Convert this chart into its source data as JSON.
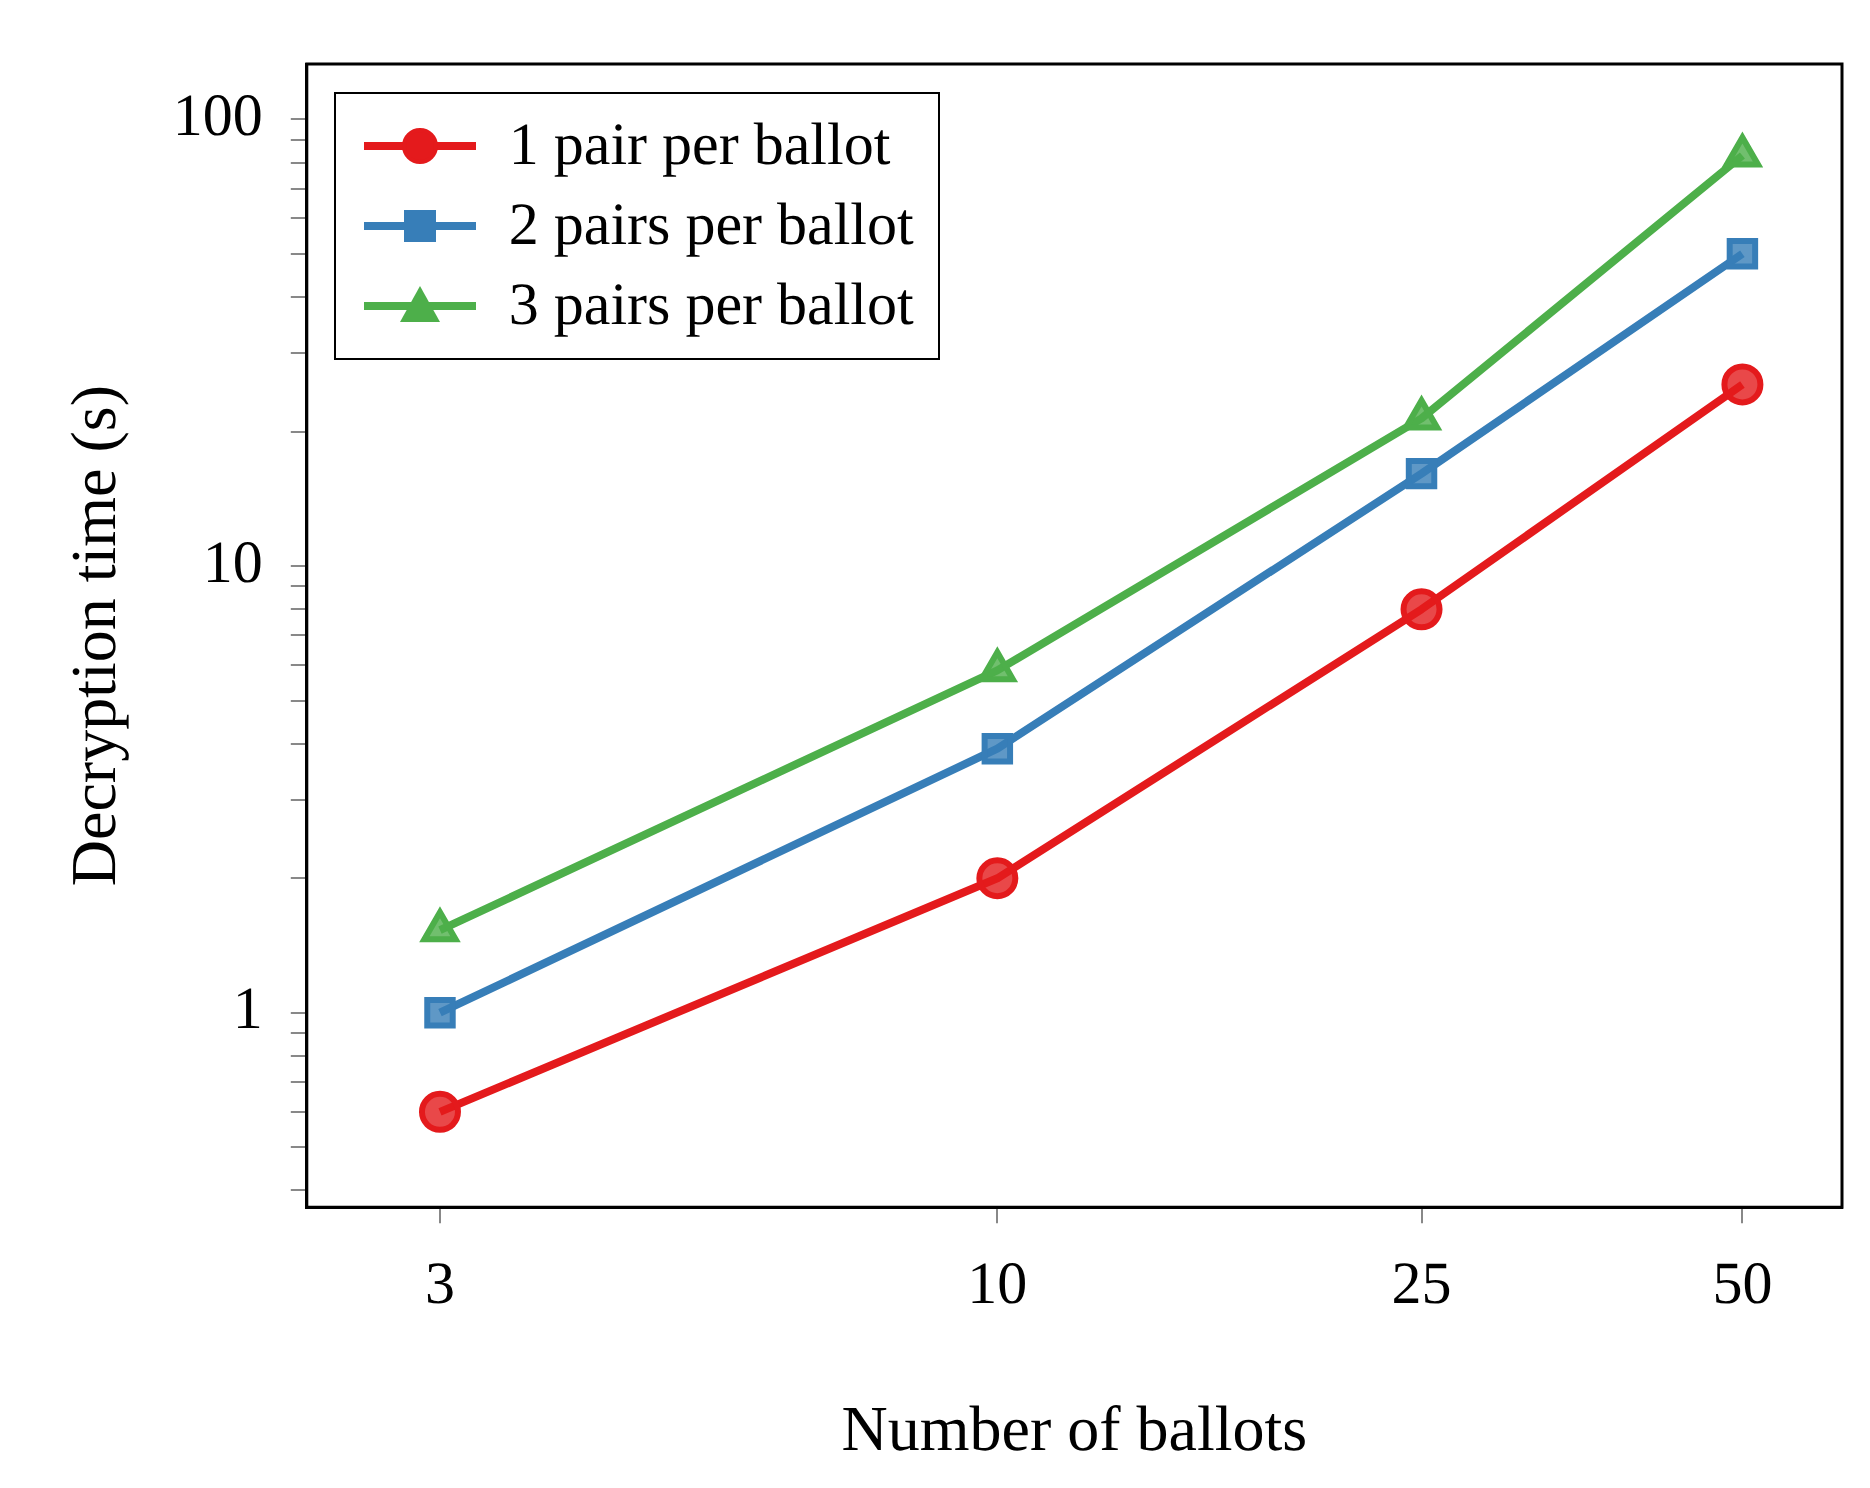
{
  "chart_data": {
    "type": "line",
    "xlabel": "Number of ballots",
    "ylabel": "Decryption time (s)",
    "log": "xy",
    "grid": false,
    "legend": "top left",
    "line_style": "solid",
    "x": [
      3,
      10,
      25,
      50
    ],
    "xlim": [
      2.25,
      62
    ],
    "xticks": [
      3,
      10,
      25,
      50
    ],
    "ylim": [
      0.367,
      133
    ],
    "yticks": [
      {
        "value": 0.4,
        "label": null
      },
      {
        "value": 0.5,
        "label": null
      },
      {
        "value": 0.6,
        "label": null
      },
      {
        "value": 0.7,
        "label": null
      },
      {
        "value": 0.8,
        "label": null
      },
      {
        "value": 0.9,
        "label": null
      },
      1,
      {
        "value": 2,
        "label": null
      },
      {
        "value": 3,
        "label": null
      },
      {
        "value": 4,
        "label": null
      },
      {
        "value": 5,
        "label": null
      },
      {
        "value": 6,
        "label": null
      },
      {
        "value": 7,
        "label": null
      },
      {
        "value": 8,
        "label": null
      },
      {
        "value": 9,
        "label": null
      },
      10,
      {
        "value": 20,
        "label": null
      },
      {
        "value": 30,
        "label": null
      },
      {
        "value": 40,
        "label": null
      },
      {
        "value": 50,
        "label": null
      },
      {
        "value": 60,
        "label": null
      },
      {
        "value": 70,
        "label": null
      },
      {
        "value": 80,
        "label": null
      },
      {
        "value": 90,
        "label": null
      },
      100
    ],
    "series": [
      {
        "name": "1 pair per ballot",
        "color": "#e41a1c",
        "marker": "circle",
        "values": [
          0.6,
          2,
          8,
          25.5
        ]
      },
      {
        "name": "2 pairs per ballot",
        "color": "#377eb8",
        "marker": "square",
        "values": [
          1,
          3.9,
          16.1,
          50
        ]
      },
      {
        "name": "3 pairs per ballot",
        "color": "#4daf4a",
        "marker": "triangle",
        "values": [
          1.53,
          5.84,
          21.4,
          83
        ]
      }
    ]
  }
}
